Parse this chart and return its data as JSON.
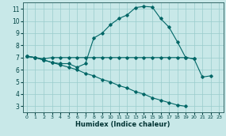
{
  "title": "",
  "xlabel": "Humidex (Indice chaleur)",
  "background_color": "#c8e8e8",
  "grid_color": "#99cccc",
  "line_color": "#006666",
  "xlim": [
    -0.5,
    23.5
  ],
  "ylim": [
    2.5,
    11.5
  ],
  "xticks": [
    0,
    1,
    2,
    3,
    4,
    5,
    6,
    7,
    8,
    9,
    10,
    11,
    12,
    13,
    14,
    15,
    16,
    17,
    18,
    19,
    20,
    21,
    22,
    23
  ],
  "yticks": [
    3,
    4,
    5,
    6,
    7,
    8,
    9,
    10,
    11
  ],
  "curve1_x": [
    0,
    1,
    2,
    3,
    4,
    5,
    6,
    7,
    8,
    9,
    10,
    11,
    12,
    13,
    14,
    15,
    16,
    17,
    18,
    19,
    20,
    21,
    22
  ],
  "curve1_y": [
    7.1,
    7.0,
    6.8,
    6.6,
    6.5,
    6.5,
    6.2,
    6.5,
    8.6,
    9.0,
    9.7,
    10.2,
    10.5,
    11.1,
    11.2,
    11.15,
    10.2,
    9.5,
    8.3,
    7.0,
    6.9,
    5.4,
    5.5
  ],
  "curve2_x": [
    0,
    1,
    2,
    3,
    4,
    5,
    6,
    7,
    8,
    9,
    10,
    11,
    12,
    13,
    14,
    15,
    16,
    17,
    18,
    19,
    20
  ],
  "curve2_y": [
    7.1,
    7.0,
    6.9,
    7.0,
    7.0,
    7.0,
    7.0,
    7.0,
    7.0,
    7.0,
    7.0,
    7.0,
    7.0,
    7.0,
    7.0,
    7.0,
    7.0,
    7.0,
    7.0,
    7.0,
    6.9
  ],
  "curve3_x": [
    0,
    1,
    2,
    3,
    4,
    5,
    6,
    7,
    8,
    9,
    10,
    11,
    12,
    13,
    14,
    15,
    16,
    17,
    18,
    19,
    20,
    21,
    22,
    23
  ],
  "curve3_y": [
    7.1,
    7.0,
    6.8,
    6.6,
    6.4,
    6.2,
    6.0,
    5.7,
    5.5,
    5.2,
    5.0,
    4.7,
    4.5,
    4.2,
    4.0,
    3.7,
    3.5,
    3.3,
    3.1,
    3.0,
    null,
    null,
    null,
    null
  ]
}
